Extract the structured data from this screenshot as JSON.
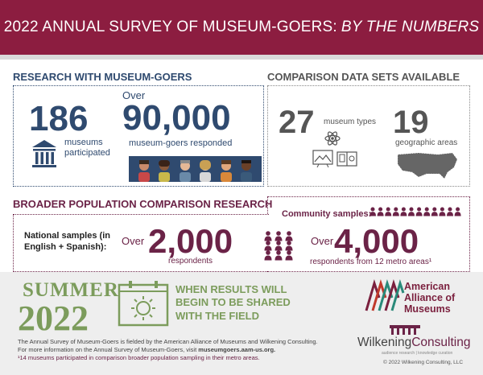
{
  "banner": {
    "title_main": "2022 ANNUAL SURVEY OF MUSEUM-GOERS:",
    "title_italic": "BY THE NUMBERS"
  },
  "research": {
    "heading": "RESEARCH WITH MUSEUM-GOERS",
    "museums_number": "186",
    "museums_label_1": "museums",
    "museums_label_2": "participated",
    "over": "Over",
    "goers_number": "90,000",
    "goers_label": "museum-goers responded"
  },
  "comparison": {
    "heading": "COMPARISON DATA SETS AVAILABLE",
    "types_number": "27",
    "types_label": "museum types",
    "areas_number": "19",
    "areas_label": "geographic areas"
  },
  "broader": {
    "heading": "BROADER POPULATION COMPARISON RESEARCH",
    "community_label": "Community samples:",
    "national_label_1": "National samples (in",
    "national_label_2": "English + Spanish):",
    "over_1": "Over",
    "national_number": "2,000",
    "national_unit": "respondents",
    "over_2": "Over",
    "community_number": "4,000",
    "community_unit": "respondents from 12 metro areas¹"
  },
  "summer": {
    "word": "SUMMER",
    "year": "2022",
    "msg_1": "WHEN RESULTS WILL",
    "msg_2": "BEGIN TO BE SHARED",
    "msg_3": "WITH THE FIELD"
  },
  "footer": {
    "line1": "The Annual Survey of Museum-Goers is fielded by the American Alliance of Museums and Wilkening Consulting.",
    "line2_prefix": "For more information on the Annual Survey of Museum-Goers, visit",
    "line2_link": "museumgoers.aam-us.org.",
    "line3": "¹14 museums participated in comparison broader population sampling in their metro areas."
  },
  "aam": {
    "line1": "American",
    "line2": "Alliance of",
    "line3": "Museums"
  },
  "wilkening": {
    "name_a": "Wilkening",
    "name_b": "Consulting",
    "tagline": "audience research | knowledge curation",
    "copyright": "© 2022 Wilkening Consulting, LLC"
  },
  "colors": {
    "banner": "#8c1d40",
    "navy": "#2f4a6f",
    "plum": "#6b2347",
    "green": "#7c9c5c"
  }
}
